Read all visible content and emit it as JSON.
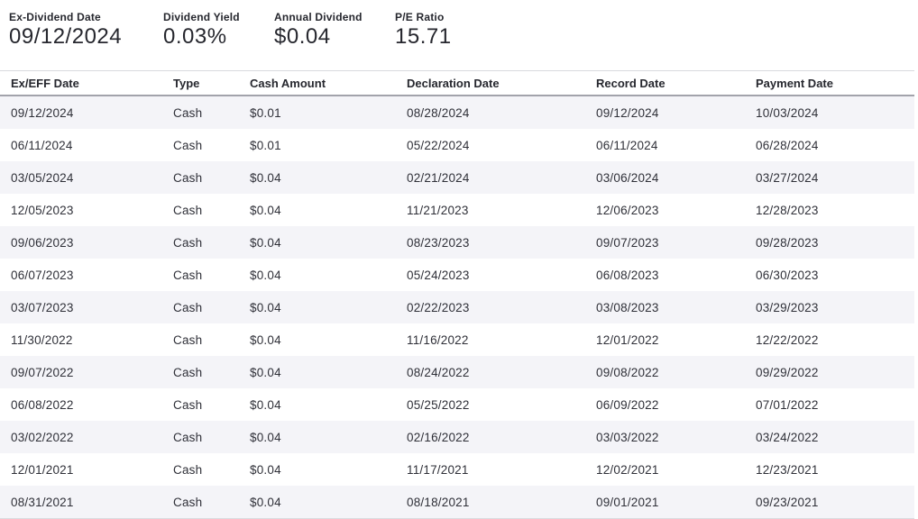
{
  "summary": {
    "items": [
      {
        "label": "Ex-Dividend Date",
        "value": "09/12/2024"
      },
      {
        "label": "Dividend Yield",
        "value": "0.03%"
      },
      {
        "label": "Annual Dividend",
        "value": "$0.04"
      },
      {
        "label": "P/E Ratio",
        "value": "15.71"
      }
    ]
  },
  "table": {
    "columns": [
      "Ex/EFF Date",
      "Type",
      "Cash Amount",
      "Declaration Date",
      "Record Date",
      "Payment Date"
    ],
    "rows": [
      [
        "09/12/2024",
        "Cash",
        "$0.01",
        "08/28/2024",
        "09/12/2024",
        "10/03/2024"
      ],
      [
        "06/11/2024",
        "Cash",
        "$0.01",
        "05/22/2024",
        "06/11/2024",
        "06/28/2024"
      ],
      [
        "03/05/2024",
        "Cash",
        "$0.04",
        "02/21/2024",
        "03/06/2024",
        "03/27/2024"
      ],
      [
        "12/05/2023",
        "Cash",
        "$0.04",
        "11/21/2023",
        "12/06/2023",
        "12/28/2023"
      ],
      [
        "09/06/2023",
        "Cash",
        "$0.04",
        "08/23/2023",
        "09/07/2023",
        "09/28/2023"
      ],
      [
        "06/07/2023",
        "Cash",
        "$0.04",
        "05/24/2023",
        "06/08/2023",
        "06/30/2023"
      ],
      [
        "03/07/2023",
        "Cash",
        "$0.04",
        "02/22/2023",
        "03/08/2023",
        "03/29/2023"
      ],
      [
        "11/30/2022",
        "Cash",
        "$0.04",
        "11/16/2022",
        "12/01/2022",
        "12/22/2022"
      ],
      [
        "09/07/2022",
        "Cash",
        "$0.04",
        "08/24/2022",
        "09/08/2022",
        "09/29/2022"
      ],
      [
        "06/08/2022",
        "Cash",
        "$0.04",
        "05/25/2022",
        "06/09/2022",
        "07/01/2022"
      ],
      [
        "03/02/2022",
        "Cash",
        "$0.04",
        "02/16/2022",
        "03/03/2022",
        "03/24/2022"
      ],
      [
        "12/01/2021",
        "Cash",
        "$0.04",
        "11/17/2021",
        "12/02/2021",
        "12/23/2021"
      ],
      [
        "08/31/2021",
        "Cash",
        "$0.04",
        "08/18/2021",
        "09/01/2021",
        "09/23/2021"
      ]
    ]
  },
  "colors": {
    "background": "#ffffff",
    "row_stripe": "#f4f4f8",
    "text_primary": "#26272e",
    "text_cell": "#2f3038",
    "border_light": "#d9dade",
    "border_header": "#a2a3ab"
  }
}
